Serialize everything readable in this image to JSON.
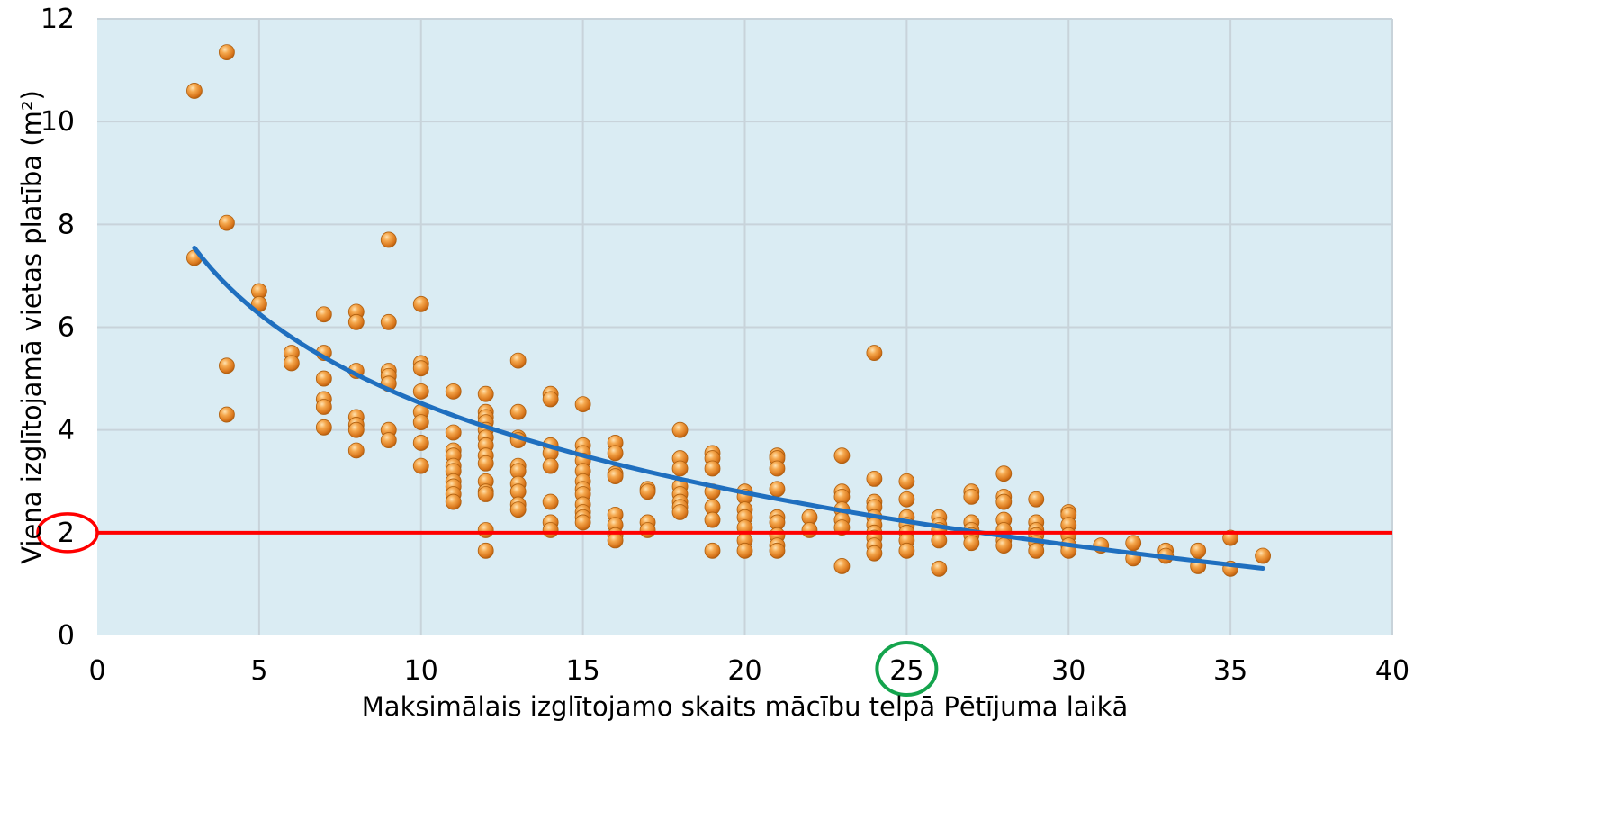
{
  "chart_data": {
    "type": "scatter",
    "xlabel": "Maksimālais izglītojamo skaits mācību telpā Pētījuma laikā",
    "ylabel": "Viena izglītojamā vietas platība (m²)",
    "xlim": [
      0,
      40
    ],
    "ylim": [
      0,
      12
    ],
    "x_ticks": [
      0,
      5,
      10,
      15,
      20,
      25,
      30,
      35,
      40
    ],
    "y_ticks": [
      0,
      2,
      4,
      6,
      8,
      10,
      12
    ],
    "grid": true,
    "legend": "none",
    "colors": {
      "plot_background": "#daecf3",
      "grid": "#c8d3da",
      "point": "#e38a2a",
      "trendline": "#1f6fbf",
      "reference_line": "#ff0000",
      "x_highlight": "#14a44d",
      "y_highlight": "#ff0000"
    },
    "reference_line": {
      "y": 2
    },
    "highlighted_y_tick": 2,
    "highlighted_x_tick": 25,
    "trendline": {
      "type": "logarithmic",
      "a": 10.3,
      "b": -2.51,
      "x_range": [
        3,
        36
      ]
    },
    "points": [
      [
        3,
        10.6
      ],
      [
        3,
        7.35
      ],
      [
        4,
        11.35
      ],
      [
        4,
        8.03
      ],
      [
        4,
        5.25
      ],
      [
        4,
        4.3
      ],
      [
        5,
        6.7
      ],
      [
        5,
        6.45
      ],
      [
        6,
        5.5
      ],
      [
        6,
        5.3
      ],
      [
        7,
        6.25
      ],
      [
        7,
        5.5
      ],
      [
        7,
        5.0
      ],
      [
        7,
        4.6
      ],
      [
        7,
        4.45
      ],
      [
        7,
        4.05
      ],
      [
        8,
        6.3
      ],
      [
        8,
        6.1
      ],
      [
        8,
        5.15
      ],
      [
        8,
        4.25
      ],
      [
        8,
        4.1
      ],
      [
        8,
        4.0
      ],
      [
        8,
        3.6
      ],
      [
        9,
        7.7
      ],
      [
        9,
        6.1
      ],
      [
        9,
        5.15
      ],
      [
        9,
        5.05
      ],
      [
        9,
        4.9
      ],
      [
        9,
        4.0
      ],
      [
        9,
        3.8
      ],
      [
        10,
        6.45
      ],
      [
        10,
        5.3
      ],
      [
        10,
        5.2
      ],
      [
        10,
        4.75
      ],
      [
        10,
        4.35
      ],
      [
        10,
        4.15
      ],
      [
        10,
        3.75
      ],
      [
        10,
        3.3
      ],
      [
        11,
        4.75
      ],
      [
        11,
        3.95
      ],
      [
        11,
        3.6
      ],
      [
        11,
        3.5
      ],
      [
        11,
        3.3
      ],
      [
        11,
        3.2
      ],
      [
        11,
        3.0
      ],
      [
        11,
        2.9
      ],
      [
        11,
        2.75
      ],
      [
        11,
        2.6
      ],
      [
        12,
        4.7
      ],
      [
        12,
        4.35
      ],
      [
        12,
        4.25
      ],
      [
        12,
        4.15
      ],
      [
        12,
        4.0
      ],
      [
        12,
        3.85
      ],
      [
        12,
        3.7
      ],
      [
        12,
        3.5
      ],
      [
        12,
        3.35
      ],
      [
        12,
        3.0
      ],
      [
        12,
        2.8
      ],
      [
        12,
        2.75
      ],
      [
        12,
        2.05
      ],
      [
        12,
        1.65
      ],
      [
        13,
        5.35
      ],
      [
        13,
        4.35
      ],
      [
        13,
        3.85
      ],
      [
        13,
        3.8
      ],
      [
        13,
        3.3
      ],
      [
        13,
        3.2
      ],
      [
        13,
        2.95
      ],
      [
        13,
        2.8
      ],
      [
        13,
        2.55
      ],
      [
        13,
        2.45
      ],
      [
        14,
        4.7
      ],
      [
        14,
        4.6
      ],
      [
        14,
        3.7
      ],
      [
        14,
        3.55
      ],
      [
        14,
        3.3
      ],
      [
        14,
        2.6
      ],
      [
        14,
        2.2
      ],
      [
        14,
        2.05
      ],
      [
        15,
        4.5
      ],
      [
        15,
        3.7
      ],
      [
        15,
        3.55
      ],
      [
        15,
        3.4
      ],
      [
        15,
        3.2
      ],
      [
        15,
        3.0
      ],
      [
        15,
        2.85
      ],
      [
        15,
        2.75
      ],
      [
        15,
        2.55
      ],
      [
        15,
        2.4
      ],
      [
        15,
        2.3
      ],
      [
        15,
        2.2
      ],
      [
        16,
        3.75
      ],
      [
        16,
        3.55
      ],
      [
        16,
        3.15
      ],
      [
        16,
        3.1
      ],
      [
        16,
        2.35
      ],
      [
        16,
        2.15
      ],
      [
        16,
        1.95
      ],
      [
        16,
        1.85
      ],
      [
        17,
        2.85
      ],
      [
        17,
        2.8
      ],
      [
        17,
        2.2
      ],
      [
        17,
        2.05
      ],
      [
        18,
        4.0
      ],
      [
        18,
        3.45
      ],
      [
        18,
        3.25
      ],
      [
        18,
        2.9
      ],
      [
        18,
        2.75
      ],
      [
        18,
        2.6
      ],
      [
        18,
        2.5
      ],
      [
        18,
        2.4
      ],
      [
        19,
        3.55
      ],
      [
        19,
        3.45
      ],
      [
        19,
        3.25
      ],
      [
        19,
        2.8
      ],
      [
        19,
        2.5
      ],
      [
        19,
        2.25
      ],
      [
        19,
        1.65
      ],
      [
        20,
        2.8
      ],
      [
        20,
        2.7
      ],
      [
        20,
        2.45
      ],
      [
        20,
        2.3
      ],
      [
        20,
        2.1
      ],
      [
        20,
        1.85
      ],
      [
        20,
        1.65
      ],
      [
        21,
        3.5
      ],
      [
        21,
        3.45
      ],
      [
        21,
        3.25
      ],
      [
        21,
        2.85
      ],
      [
        21,
        2.3
      ],
      [
        21,
        2.2
      ],
      [
        21,
        1.95
      ],
      [
        21,
        1.75
      ],
      [
        21,
        1.65
      ],
      [
        22,
        2.3
      ],
      [
        22,
        2.05
      ],
      [
        23,
        3.5
      ],
      [
        23,
        2.8
      ],
      [
        23,
        2.7
      ],
      [
        23,
        2.45
      ],
      [
        23,
        2.25
      ],
      [
        23,
        2.1
      ],
      [
        23,
        1.35
      ],
      [
        24,
        5.5
      ],
      [
        24,
        3.05
      ],
      [
        24,
        2.6
      ],
      [
        24,
        2.5
      ],
      [
        24,
        2.3
      ],
      [
        24,
        2.15
      ],
      [
        24,
        2.0
      ],
      [
        24,
        1.9
      ],
      [
        24,
        1.75
      ],
      [
        24,
        1.6
      ],
      [
        25,
        3.0
      ],
      [
        25,
        2.65
      ],
      [
        25,
        2.3
      ],
      [
        25,
        2.15
      ],
      [
        25,
        2.0
      ],
      [
        25,
        1.85
      ],
      [
        25,
        1.65
      ],
      [
        26,
        2.3
      ],
      [
        26,
        2.15
      ],
      [
        26,
        2.05
      ],
      [
        26,
        1.85
      ],
      [
        26,
        1.3
      ],
      [
        27,
        2.8
      ],
      [
        27,
        2.7
      ],
      [
        27,
        2.2
      ],
      [
        27,
        2.05
      ],
      [
        27,
        1.95
      ],
      [
        27,
        1.8
      ],
      [
        28,
        3.15
      ],
      [
        28,
        2.7
      ],
      [
        28,
        2.6
      ],
      [
        28,
        2.25
      ],
      [
        28,
        2.05
      ],
      [
        28,
        1.85
      ],
      [
        28,
        1.75
      ],
      [
        29,
        2.65
      ],
      [
        29,
        2.2
      ],
      [
        29,
        2.05
      ],
      [
        29,
        1.95
      ],
      [
        29,
        1.8
      ],
      [
        29,
        1.65
      ],
      [
        30,
        2.4
      ],
      [
        30,
        2.35
      ],
      [
        30,
        2.15
      ],
      [
        30,
        1.95
      ],
      [
        30,
        1.75
      ],
      [
        30,
        1.65
      ],
      [
        31,
        1.75
      ],
      [
        32,
        1.8
      ],
      [
        32,
        1.5
      ],
      [
        33,
        1.65
      ],
      [
        33,
        1.55
      ],
      [
        34,
        1.65
      ],
      [
        34,
        1.35
      ],
      [
        35,
        1.9
      ],
      [
        35,
        1.3
      ],
      [
        36,
        1.55
      ]
    ]
  }
}
